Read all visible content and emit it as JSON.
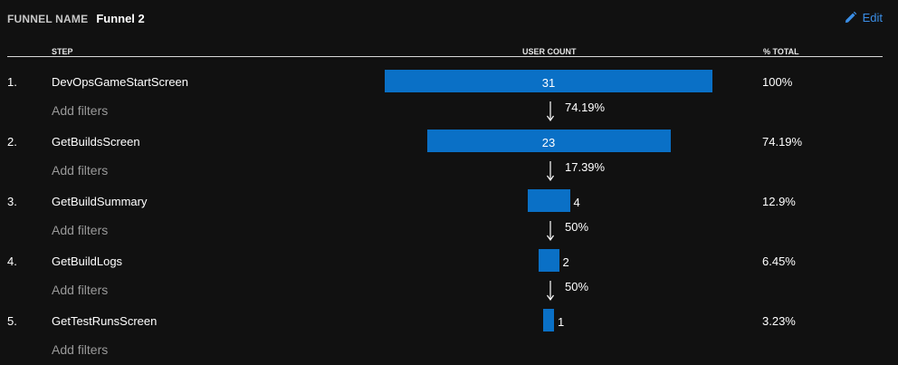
{
  "header": {
    "label": "FUNNEL NAME",
    "name": "Funnel 2",
    "edit_label": "Edit",
    "edit_icon": "pencil-icon",
    "accent_color": "#3a8ee6"
  },
  "columns": {
    "step": "STEP",
    "user_count": "USER COUNT",
    "pct_total": "% TOTAL"
  },
  "bar_color": "#0a70c6",
  "add_filters_label": "Add filters",
  "steps": [
    {
      "index": "1.",
      "name": "DevOpsGameStartScreen",
      "count": 31,
      "count_label": "31",
      "pct_total": "100%",
      "conversion_to_next": "74.19%"
    },
    {
      "index": "2.",
      "name": "GetBuildsScreen",
      "count": 23,
      "count_label": "23",
      "pct_total": "74.19%",
      "conversion_to_next": "17.39%"
    },
    {
      "index": "3.",
      "name": "GetBuildSummary",
      "count": 4,
      "count_label": "4",
      "pct_total": "12.9%",
      "conversion_to_next": "50%"
    },
    {
      "index": "4.",
      "name": "GetBuildLogs",
      "count": 2,
      "count_label": "2",
      "pct_total": "6.45%",
      "conversion_to_next": "50%"
    },
    {
      "index": "5.",
      "name": "GetTestRunsScreen",
      "count": 1,
      "count_label": "1",
      "pct_total": "3.23%",
      "conversion_to_next": ""
    }
  ]
}
